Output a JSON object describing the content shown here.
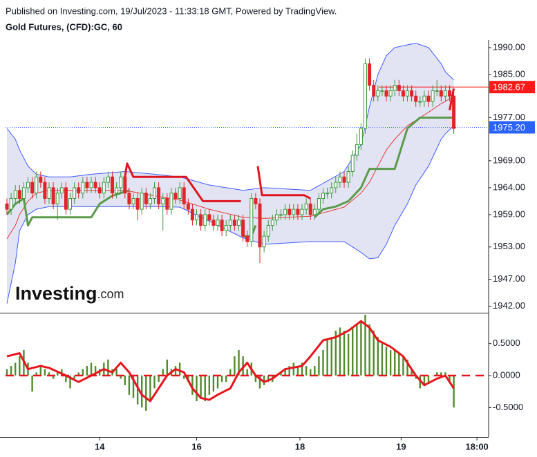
{
  "header": {
    "published": "Published on Investing.com, 19/Jul/2023 - 11:33:18 GMT, Powered by TradingView.",
    "symbol": "Gold Futures, (CFD):GC, 60"
  },
  "logo": {
    "name": "Investing",
    "suffix": ".com"
  },
  "chart_data": [
    {
      "type": "candlestick",
      "xlim": [
        -0.33,
        114.26
      ],
      "xticks": [
        {
          "value": 22,
          "label": "14"
        },
        {
          "value": 45,
          "label": "16"
        },
        {
          "value": 69.5,
          "label": "18"
        },
        {
          "value": 93.5,
          "label": "19"
        },
        {
          "value": 111.5,
          "label": "18:00"
        }
      ],
      "ylim": [
        1940.8,
        1991.4
      ],
      "yticks": [
        {
          "value": 1990,
          "label": "1990.00"
        },
        {
          "value": 1985,
          "label": "1985.00"
        },
        {
          "value": 1977,
          "label": "1977.00"
        },
        {
          "value": 1969,
          "label": "1969.00"
        },
        {
          "value": 1964,
          "label": "1964.00"
        },
        {
          "value": 1959,
          "label": "1959.00"
        },
        {
          "value": 1953,
          "label": "1953.00"
        },
        {
          "value": 1947,
          "label": "1947.00"
        },
        {
          "value": 1942,
          "label": "1942.00"
        }
      ],
      "up_color": "#3c9a3c",
      "down_color": "#e0242a",
      "candles": {
        "open": [
          1961,
          1960,
          1962,
          1963.5,
          1962,
          1964,
          1965,
          1963,
          1966,
          1965,
          1962,
          1964,
          1961,
          1963,
          1964,
          1960,
          1962,
          1964,
          1963,
          1965,
          1964,
          1965,
          1964,
          1963,
          1965,
          1966,
          1963,
          1964,
          1966,
          1963,
          1961,
          1962,
          1960,
          1963,
          1961,
          1962,
          1964,
          1961,
          1962,
          1960,
          1963,
          1962,
          1964,
          1961,
          1960,
          1958,
          1959,
          1957,
          1959,
          1958,
          1957,
          1958,
          1956,
          1957,
          1958,
          1957,
          1958,
          1955,
          1954,
          1962,
          1961,
          1953,
          1955,
          1957,
          1958,
          1959,
          1959,
          1960,
          1959,
          1960,
          1959,
          1960,
          1961,
          1959,
          1960,
          1962,
          1963,
          1963,
          1964,
          1965,
          1966,
          1965,
          1967,
          1970,
          1972,
          1975,
          1987,
          1983,
          1981,
          1982,
          1982,
          1981,
          1982,
          1983,
          1982,
          1981,
          1982,
          1981,
          1980,
          1980,
          1981,
          1980,
          1982,
          1982,
          1981,
          1982,
          1981
        ],
        "high": [
          1962,
          1963,
          1964.5,
          1964.5,
          1965,
          1966,
          1966,
          1967,
          1967,
          1966,
          1965,
          1965,
          1964,
          1965,
          1965,
          1963,
          1965,
          1965,
          1966,
          1966,
          1966,
          1966,
          1965,
          1966,
          1967,
          1967,
          1965,
          1967,
          1967,
          1964,
          1963,
          1963,
          1964,
          1964,
          1963,
          1965,
          1965,
          1963,
          1963,
          1964,
          1964,
          1965,
          1965,
          1962,
          1961,
          1960,
          1960,
          1960,
          1960,
          1959,
          1959,
          1959,
          1958,
          1959,
          1959,
          1959,
          1959,
          1956,
          1963,
          1963,
          1962,
          1956,
          1958,
          1959,
          1960,
          1960,
          1961,
          1961,
          1961,
          1961,
          1961,
          1962,
          1962,
          1961,
          1963,
          1964,
          1964,
          1965,
          1966,
          1967,
          1967,
          1968,
          1971,
          1974,
          1976,
          1988,
          1988,
          1984,
          1983,
          1983,
          1983,
          1983,
          1984,
          1984,
          1983,
          1983,
          1983,
          1982,
          1981,
          1982,
          1982,
          1983,
          1984,
          1983,
          1983,
          1983,
          1982
        ],
        "low": [
          1959,
          1959,
          1961,
          1961,
          1961,
          1963,
          1962,
          1962,
          1964,
          1961,
          1961,
          1960,
          1958,
          1962,
          1959,
          1959,
          1961,
          1962,
          1962,
          1963,
          1963,
          1963,
          1962,
          1962,
          1964,
          1962,
          1962,
          1963,
          1962,
          1960,
          1960,
          1958,
          1959,
          1960,
          1960,
          1961,
          1960,
          1956,
          1959,
          1959,
          1961,
          1961,
          1960,
          1959,
          1957,
          1957,
          1956,
          1956,
          1957,
          1956,
          1956,
          1955,
          1955,
          1956,
          1956,
          1956,
          1954,
          1953,
          1953,
          1960,
          1950,
          1952,
          1954,
          1956,
          1957,
          1958,
          1958,
          1958,
          1958,
          1958,
          1958,
          1959,
          1958,
          1958,
          1959,
          1961,
          1962,
          1962,
          1963,
          1964,
          1964,
          1964,
          1966,
          1969,
          1971,
          1974,
          1982,
          1980,
          1980,
          1981,
          1980,
          1980,
          1981,
          1981,
          1980,
          1980,
          1980,
          1979,
          1979,
          1979,
          1979,
          1979,
          1981,
          1980,
          1980,
          1980,
          1974
        ],
        "close": [
          1960,
          1962,
          1963.5,
          1962,
          1964,
          1965,
          1963,
          1966,
          1965,
          1962,
          1964,
          1961,
          1963,
          1964,
          1960,
          1962,
          1964,
          1963,
          1965,
          1964,
          1965,
          1964,
          1963,
          1965,
          1966,
          1963,
          1964,
          1966,
          1963,
          1961,
          1962,
          1960,
          1963,
          1961,
          1962,
          1964,
          1961,
          1962,
          1960,
          1963,
          1962,
          1964,
          1961,
          1960,
          1958,
          1959,
          1957,
          1959,
          1958,
          1957,
          1958,
          1956,
          1957,
          1958,
          1957,
          1958,
          1955,
          1954,
          1962,
          1961,
          1953,
          1955,
          1957,
          1958,
          1959,
          1959,
          1960,
          1959,
          1960,
          1959,
          1960,
          1961,
          1959,
          1960,
          1962,
          1963,
          1963,
          1964,
          1965,
          1966,
          1965,
          1967,
          1970,
          1972,
          1975,
          1987,
          1983,
          1981,
          1982,
          1982,
          1981,
          1982,
          1983,
          1982,
          1981,
          1982,
          1981,
          1980,
          1980,
          1981,
          1980,
          1982,
          1982,
          1981,
          1982,
          1981,
          1975
        ]
      },
      "bands": {
        "color": "#3d5afe",
        "fill": "#e3e4f3",
        "middle_color": "#e53935",
        "x": [
          0,
          2,
          3,
          5,
          7,
          10,
          15,
          20,
          28,
          35,
          41,
          48,
          56,
          61,
          72,
          80,
          84,
          86,
          88,
          90,
          92,
          95,
          97,
          100,
          103,
          104,
          106
        ],
        "upper": [
          1975,
          1973,
          1971,
          1968,
          1966.5,
          1966,
          1966,
          1966.5,
          1967,
          1966.5,
          1966,
          1964.5,
          1963.5,
          1964,
          1963.5,
          1967,
          1972,
          1979,
          1985,
          1988.5,
          1990,
          1990.5,
          1990.8,
          1990,
          1987,
          1985.5,
          1984
        ],
        "middle": [
          1954.5,
          1957,
          1959,
          1961.5,
          1963,
          1963.5,
          1963.5,
          1963.5,
          1963.5,
          1962.5,
          1961.7,
          1960,
          1958.5,
          1958.3,
          1958.7,
          1960.4,
          1963,
          1965,
          1968,
          1971,
          1973,
          1975.5,
          1976.5,
          1978,
          1979.6,
          1980,
          1981
        ],
        "lower": [
          1942.5,
          1950,
          1956,
          1959,
          1960,
          1960.5,
          1960.5,
          1960.5,
          1960.5,
          1960.5,
          1960.4,
          1957.8,
          1954.7,
          1953.5,
          1954,
          1954,
          1952,
          1950.8,
          1951,
          1953.5,
          1957,
          1961,
          1964.5,
          1968,
          1973,
          1974,
          1975.5
        ]
      },
      "stops": [
        {
          "color": "#5a9a4a",
          "x": [
            0,
            2,
            4,
            5,
            6,
            20,
            22,
            25,
            29,
            40,
            56,
            58,
            59,
            66,
            73,
            75,
            78,
            81,
            84,
            86,
            92,
            95,
            98,
            106
          ],
          "values": [
            1959,
            1961,
            1962,
            1957,
            1958.5,
            1958.5,
            1961,
            1962.5,
            1963.5,
            null,
            1955,
            1955,
            1957,
            null,
            1958.5,
            1960,
            1960.5,
            1961.5,
            1964,
            1967.5,
            1967.5,
            1975,
            1977,
            1977
          ]
        },
        {
          "color": "#e0141e",
          "x": [
            28,
            28.5,
            30,
            42.5,
            46.5,
            55.5,
            58,
            59.5,
            60.5,
            70.5,
            72,
            90,
            105,
            106
          ],
          "values": [
            1966,
            1968.5,
            1966,
            1966,
            1961.5,
            1961.5,
            null,
            1968,
            1962.6,
            1962.6,
            1962,
            null,
            1978.4,
            1982.4
          ]
        }
      ],
      "price_lines": [
        {
          "value": 1982.67,
          "label": "1982.67",
          "color": "#ff1a1a",
          "style": "solid"
        },
        {
          "value": 1975.2,
          "label": "1975.20",
          "color": "#2962ff",
          "style": "dotted"
        }
      ]
    },
    {
      "type": "macd",
      "xlim": [
        -0.33,
        114.26
      ],
      "ylim": [
        -0.96,
        0.96
      ],
      "yticks": [
        {
          "value": 0.5,
          "label": "0.5000"
        },
        {
          "value": 0,
          "label": "0.0000"
        },
        {
          "value": -0.5,
          "label": "-0.5000"
        }
      ],
      "histogram": {
        "color": "#4f8a2b",
        "values": [
          0.1,
          0.15,
          0.2,
          0.3,
          0.4,
          0.2,
          -0.25,
          0.05,
          0.15,
          0.1,
          0.05,
          -0.05,
          0.05,
          0.1,
          -0.1,
          -0.2,
          -0.05,
          0.05,
          0.1,
          0.15,
          0.2,
          0.15,
          0.1,
          0.2,
          0.25,
          0.1,
          0.1,
          -0.05,
          -0.15,
          -0.3,
          -0.35,
          -0.45,
          -0.5,
          -0.55,
          -0.4,
          -0.2,
          -0.1,
          0.1,
          0.25,
          0.1,
          0.15,
          0.2,
          -0.05,
          -0.1,
          -0.3,
          -0.4,
          -0.35,
          -0.4,
          -0.3,
          -0.25,
          -0.2,
          -0.1,
          -0.1,
          0.1,
          0.3,
          0.4,
          0.3,
          0.1,
          0.2,
          -0.1,
          -0.2,
          -0.15,
          -0.1,
          -0.1,
          0,
          0.05,
          0.1,
          0.15,
          0.2,
          0.15,
          0.2,
          0.15,
          0.1,
          0.15,
          0.3,
          0.4,
          0.55,
          0.6,
          0.7,
          0.75,
          0.7,
          0.65,
          0.75,
          0.8,
          0.85,
          0.95,
          0.8,
          0.7,
          0.6,
          0.5,
          0.45,
          0.4,
          0.4,
          0.35,
          0.3,
          0.25,
          0.1,
          -0.05,
          -0.2,
          -0.15,
          -0.1,
          0,
          0.05,
          0.05,
          0.05,
          -0.1,
          -0.5
        ]
      },
      "line": {
        "color": "#e8141c",
        "x": [
          0,
          3,
          5,
          8,
          10,
          14,
          17,
          20,
          23,
          25,
          27,
          29,
          32,
          34,
          36,
          38,
          40,
          42,
          44,
          46,
          48,
          50,
          53,
          55,
          57,
          59,
          61,
          63,
          66,
          70,
          72,
          75,
          78,
          81,
          84,
          86,
          88,
          91,
          94,
          97,
          99,
          102,
          104,
          106
        ],
        "values": [
          0.3,
          0.35,
          0.1,
          0.15,
          0.12,
          0,
          -0.1,
          0,
          0.1,
          0.05,
          0.2,
          0.05,
          -0.3,
          -0.4,
          -0.2,
          0,
          0.1,
          0.05,
          -0.2,
          -0.35,
          -0.38,
          -0.3,
          -0.2,
          0.05,
          0.2,
          0,
          -0.1,
          -0.05,
          0.1,
          0.15,
          0.3,
          0.55,
          0.6,
          0.7,
          0.85,
          0.75,
          0.55,
          0.45,
          0.3,
          0,
          -0.15,
          -0.05,
          0,
          -0.2
        ]
      },
      "zero_line": {
        "color": "#e8141c"
      }
    }
  ]
}
